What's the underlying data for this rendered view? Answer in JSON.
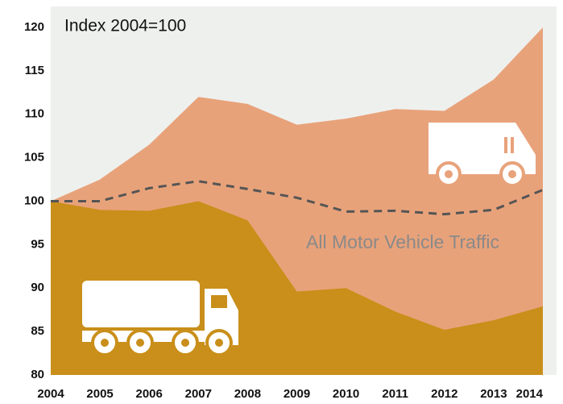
{
  "chart_data": {
    "type": "area",
    "title": "Index 2004=100",
    "x": [
      2004,
      2005,
      2006,
      2007,
      2008,
      2009,
      2010,
      2011,
      2012,
      2013,
      2014
    ],
    "xlim": [
      2004,
      2014
    ],
    "xticks": [
      2004,
      2005,
      2006,
      2007,
      2008,
      2009,
      2010,
      2011,
      2012,
      2013,
      2014
    ],
    "ylim": [
      80,
      120
    ],
    "yticks": [
      80,
      85,
      90,
      95,
      100,
      105,
      110,
      115,
      120
    ],
    "series": [
      {
        "kind": "area",
        "color": "#e8a27a",
        "values": [
          100,
          102.5,
          106.5,
          112,
          111.2,
          108.8,
          109.5,
          110.6,
          110.4,
          114,
          120
        ]
      },
      {
        "kind": "area",
        "color": "#c98f1a",
        "values": [
          100,
          99,
          98.9,
          100,
          97.8,
          89.6,
          90,
          87.3,
          85.2,
          86.3,
          87.9
        ]
      },
      {
        "kind": "line",
        "dashed": true,
        "color": "#555555",
        "name": "All Motor Vehicle Traffic",
        "values": [
          100,
          100,
          101.5,
          102.3,
          101.4,
          100.4,
          98.8,
          98.9,
          98.5,
          99,
          101.3
        ]
      }
    ]
  }
}
